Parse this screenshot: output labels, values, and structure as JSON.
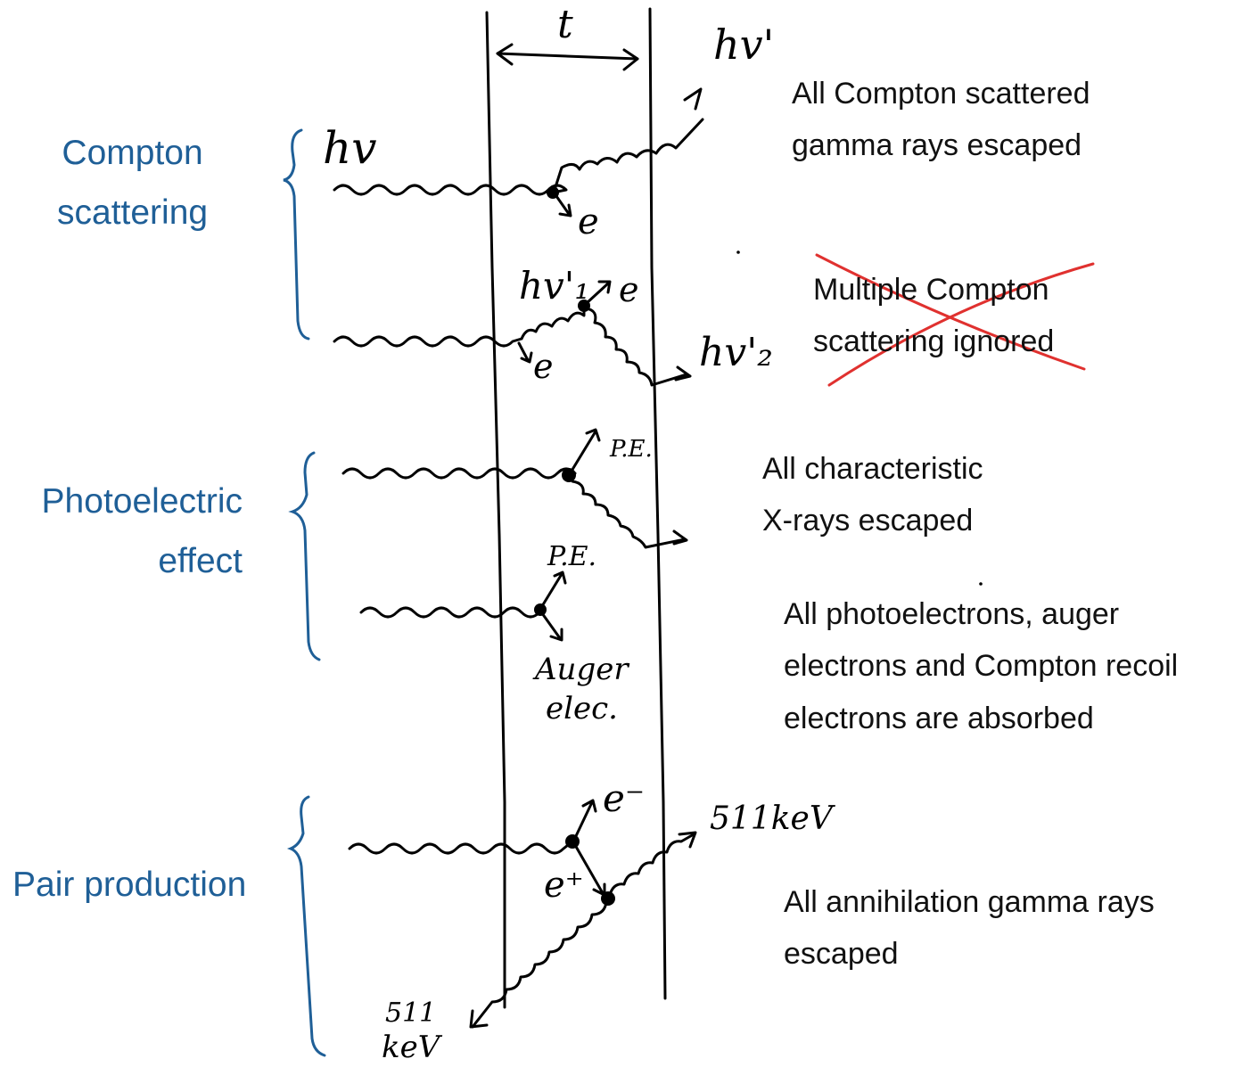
{
  "categories": {
    "compton": [
      "Compton",
      "scattering"
    ],
    "photoelectric": [
      "Photoelectric",
      "effect"
    ],
    "pair": [
      "Pair production"
    ]
  },
  "notes": {
    "compton_escaped": [
      "All Compton scattered",
      "gamma rays escaped"
    ],
    "multiple_ignored": [
      "Multiple Compton",
      "scattering ignored"
    ],
    "xrays_escaped": [
      "All characteristic",
      "X-rays escaped"
    ],
    "electrons_absorbed": [
      "All photoelectrons, auger",
      "electrons and Compton recoil",
      "electrons are absorbed"
    ],
    "annihilation_escaped": [
      "All annihilation gamma rays",
      "escaped"
    ]
  },
  "handwriting": {
    "thickness": "t",
    "hv": "hv",
    "hv_prime": "hv'",
    "hv1_prime": "hv'₁",
    "hv2_prime": "hv'₂",
    "electron": "e",
    "electron_minus": "e⁻",
    "positron": "e⁺",
    "photoelectron": "P.E.",
    "auger": [
      "Auger",
      "elec."
    ],
    "annihilation_energy": "511keV",
    "annihilation_energy_left": [
      "511",
      "keV"
    ]
  },
  "colors": {
    "category_blue": "#1f5f97",
    "strike_red": "#e0312f"
  }
}
